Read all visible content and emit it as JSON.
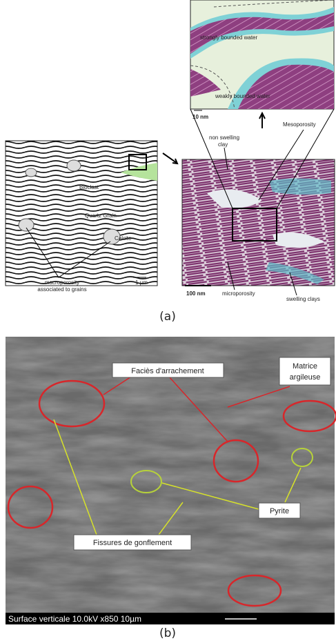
{
  "panel_a": {
    "inset": {
      "strongly_bound": "strongly bounded water",
      "weakly_bound": "weakly bounded water",
      "scale": "10 nm"
    },
    "mesoporosity": "Mesoporosity",
    "non_swelling_clay": [
      "non swelling",
      "clay"
    ],
    "bioclast": "Bioclast",
    "quartz_grain": "Quartz Grain",
    "calcite": "Calcite",
    "macroporosity": [
      "macroporosity",
      "associated to grains"
    ],
    "left_scale": "1 µm",
    "right_scale": "100 nm",
    "microporosity": "microporosity",
    "swelling_clays": "swelling clays",
    "caption": "(a)"
  },
  "panel_b": {
    "facies": "Faciès d'arrachement",
    "matrice": [
      "Matrice",
      "argileuse"
    ],
    "pyrite": "Pyrite",
    "fissures": "Fissures de gonflement",
    "info_bar": "Surface verticale  10.0kV  x850   10µm",
    "caption": "(b)"
  }
}
